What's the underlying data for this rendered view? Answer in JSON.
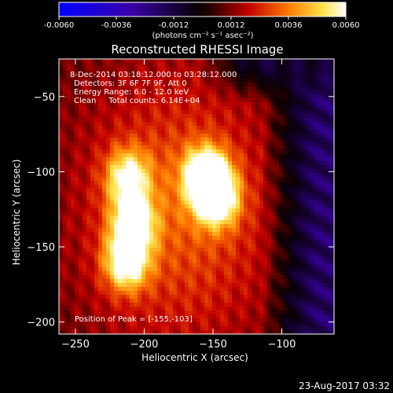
{
  "colorbar": {
    "tick_labels": [
      "-0.0060",
      "-0.0036",
      "-0.0012",
      "0.0012",
      "0.0036",
      "0.0060"
    ],
    "range": [
      -0.006,
      0.006
    ],
    "unit_label": "(photons cm⁻² s⁻¹ asec⁻²)"
  },
  "chart_data": {
    "type": "heatmap",
    "title": "Reconstructed RHESSI Image",
    "xlabel": "Heliocentric X (arcsec)",
    "ylabel": "Heliocentric Y (arcsec)",
    "xlim": [
      -262,
      -62
    ],
    "ylim": [
      -208,
      -25
    ],
    "x_ticks": [
      -250,
      -200,
      -150,
      -100
    ],
    "y_ticks": [
      -50,
      -100,
      -150,
      -200
    ],
    "colormap": "rhessi-blue-black-red-yellow-white",
    "bright_sources": [
      {
        "x": -155,
        "y": -103,
        "peak": 0.006
      },
      {
        "x": -147,
        "y": -118,
        "peak": 0.0048
      },
      {
        "x": -212,
        "y": -104,
        "peak": 0.0042
      },
      {
        "x": -208,
        "y": -135,
        "peak": 0.0048
      },
      {
        "x": -213,
        "y": -160,
        "peak": 0.005
      }
    ],
    "info_lines": [
      "8-Dec-2014 03:18:12.000 to 03:28:12.000",
      "Detectors: 3F 6F 7F 9F, Att 0",
      "Energy Range: 6.0 - 12.0 keV",
      "Clean     Total counts: 6.14E+04"
    ],
    "peak_label": "Position of Peak = [-155,-103]"
  },
  "timestamp": "23-Aug-2017 03:32"
}
